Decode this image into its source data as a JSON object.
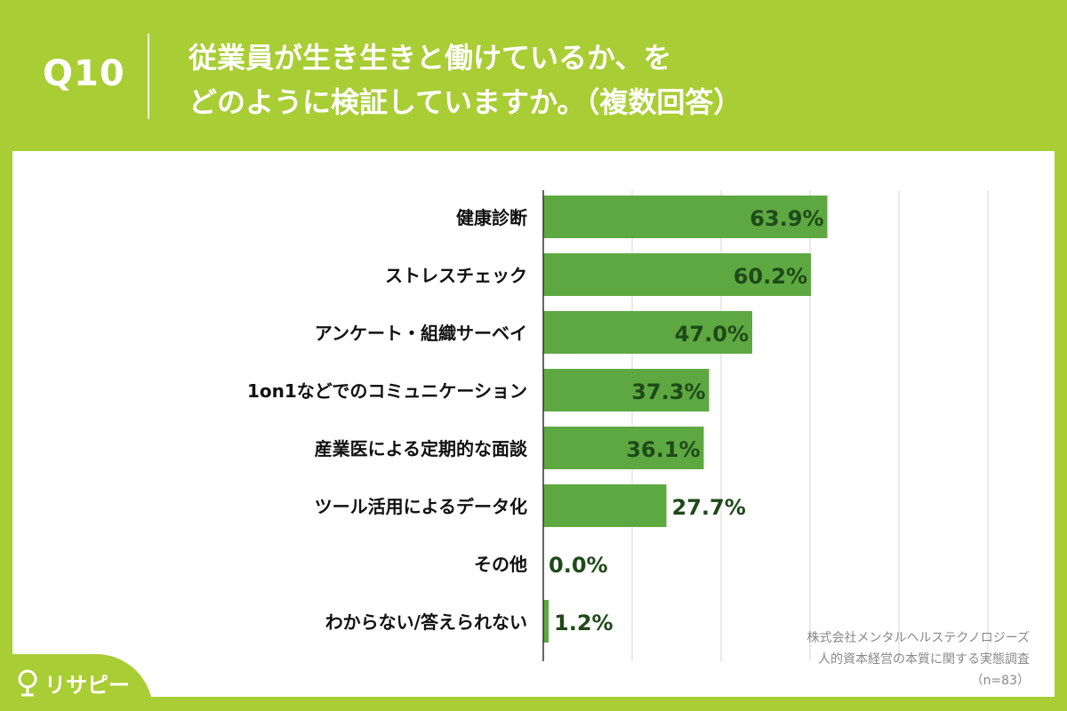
{
  "header": {
    "q_label": "Q10",
    "title_line1": "従業員が生き生きと働けているか、を",
    "title_line2": "どのように検証していますか。（複数回答）"
  },
  "colors": {
    "background": "#a9cd34",
    "bar": "#5ea842",
    "value_text": "#1e4a18",
    "card": "#ffffff"
  },
  "chart_data": {
    "type": "bar",
    "orientation": "horizontal",
    "categories": [
      "健康診断",
      "ストレスチェック",
      "アンケート・組織サーベイ",
      "1on1などでのコミュニケーション",
      "産業医による定期的な面談",
      "ツール活用によるデータ化",
      "その他",
      "わからない/答えられない"
    ],
    "values": [
      63.9,
      60.2,
      47.0,
      37.3,
      36.1,
      27.7,
      0.0,
      1.2
    ],
    "value_labels": [
      "63.9%",
      "60.2%",
      "47.0%",
      "37.3%",
      "36.1%",
      "27.7%",
      "0.0%",
      "1.2%"
    ],
    "xlim": [
      0,
      100
    ],
    "grid": true
  },
  "source": {
    "line1": "株式会社メンタルヘルステクノロジーズ",
    "line2": "人的資本経営の本質に関する実態調査",
    "line3": "（n=83）"
  },
  "logo": {
    "text": "リサピー",
    "icon": "pin-icon"
  }
}
